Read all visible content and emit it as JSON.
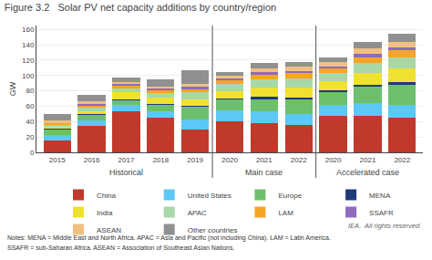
{
  "chart_data": {
    "type": "bar",
    "stacked": true,
    "title": "Figure 3.2   Solar PV net capacity additions by country/region",
    "ylabel": "GW",
    "categories": [
      "2015",
      "2016",
      "2017",
      "2018",
      "2019",
      "2020",
      "2021",
      "2022",
      "2020",
      "2021",
      "2022"
    ],
    "groups": [
      {
        "label": "Historical",
        "categories": [
          "2015",
          "2016",
          "2017",
          "2018",
          "2019"
        ]
      },
      {
        "label": "Main case",
        "categories": [
          "2020",
          "2021",
          "2022"
        ]
      },
      {
        "label": "Accelerated case",
        "categories": [
          "2020",
          "2021",
          "2022"
        ]
      }
    ],
    "series": [
      {
        "name": "China",
        "color": "#c0392b",
        "values": [
          15,
          34,
          53,
          45,
          30,
          40,
          38,
          36,
          47,
          47,
          45
        ]
      },
      {
        "name": "United States",
        "color": "#5bc8f5",
        "values": [
          7,
          8,
          9,
          9,
          13,
          15,
          15,
          14,
          15,
          17,
          17
        ]
      },
      {
        "name": "Europe",
        "color": "#6dbf6d",
        "values": [
          8,
          7,
          6,
          8,
          17,
          14,
          17,
          19,
          17,
          21,
          26
        ]
      },
      {
        "name": "MENA",
        "color": "#1f3a7a",
        "values": [
          1,
          1,
          1,
          1,
          1,
          1,
          2,
          2,
          2,
          3,
          3
        ]
      },
      {
        "name": "India",
        "color": "#f0e030",
        "values": [
          2,
          4,
          9,
          8,
          8,
          10,
          12,
          13,
          12,
          15,
          18
        ]
      },
      {
        "name": "APAC",
        "color": "#a8d8a8",
        "values": [
          3,
          4,
          5,
          6,
          9,
          9,
          11,
          12,
          10,
          13,
          15
        ]
      },
      {
        "name": "LAM",
        "color": "#f5a623",
        "values": [
          2,
          3,
          4,
          4,
          5,
          5,
          6,
          7,
          6,
          8,
          9
        ]
      },
      {
        "name": "SSAFR",
        "color": "#8e6bbf",
        "values": [
          1,
          2,
          2,
          2,
          2,
          2,
          3,
          3,
          3,
          4,
          4
        ]
      },
      {
        "name": "ASEAN",
        "color": "#f0c080",
        "values": [
          2,
          3,
          3,
          3,
          4,
          4,
          5,
          5,
          5,
          7,
          7
        ]
      },
      {
        "name": "Other countries",
        "color": "#909090",
        "values": [
          9,
          9,
          5,
          9,
          18,
          5,
          7,
          6,
          7,
          9,
          10
        ]
      }
    ],
    "ylim": [
      0,
      165
    ],
    "yticks": [
      0,
      20,
      40,
      60,
      80,
      100,
      120,
      140,
      160
    ],
    "grid": true,
    "legend": "bottom",
    "notes": [
      "Notes: MENA = Middle East and North Africa. APAC = Asia and Pacific (not including China). LAM = Latin America.",
      "SSAFR = sub-Saharan Africa. ASEAN = Association of Southeast Asian Nations."
    ],
    "source": "IEA.  All rights reserved."
  }
}
